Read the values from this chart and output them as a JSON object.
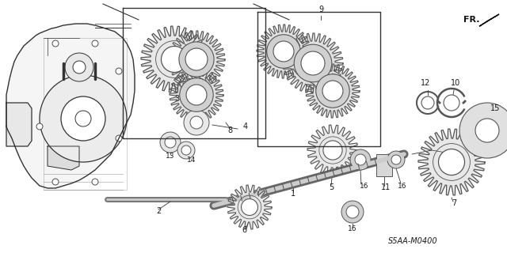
{
  "bg_color": "#ffffff",
  "fig_width": 6.4,
  "fig_height": 3.2,
  "dpi": 100,
  "diagram_code": "S5AA-M0400",
  "fr_label": "FR.",
  "text_color": "#1a1a1a",
  "font_size": 7,
  "line_color": "#333333",
  "gear_color": "#555555",
  "case_color": "#444444"
}
